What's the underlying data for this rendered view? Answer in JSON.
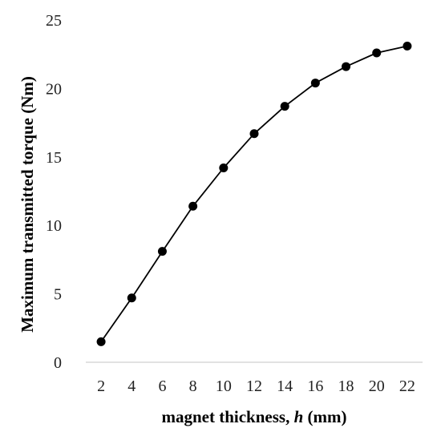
{
  "chart_data": {
    "type": "line",
    "title": "",
    "xlabel": {
      "prefix": "magnet thickness, ",
      "variable": "h",
      "suffix": " (mm)"
    },
    "ylabel": "Maximum transmitted torque (Nm)",
    "x": [
      2,
      4,
      6,
      8,
      10,
      12,
      14,
      16,
      18,
      20,
      22
    ],
    "x_ticks": [
      "2",
      "4",
      "6",
      "8",
      "10",
      "12",
      "14",
      "16",
      "18",
      "20",
      "22"
    ],
    "y_ticks": [
      "0",
      "5",
      "10",
      "15",
      "20",
      "25"
    ],
    "ylim": [
      0,
      25
    ],
    "grid": false,
    "legend": "none",
    "series": [
      {
        "values": [
          1.5,
          4.7,
          8.1,
          11.4,
          14.2,
          16.7,
          18.7,
          20.4,
          21.6,
          22.6,
          23.1
        ],
        "color": "#000000",
        "marker": "circle"
      }
    ]
  }
}
